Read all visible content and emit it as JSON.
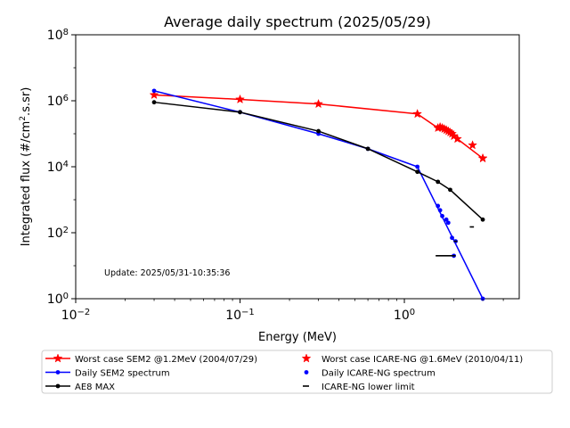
{
  "chart_data": {
    "type": "line",
    "title": "Average daily spectrum (2025/05/29)",
    "xlabel": "Energy (MeV)",
    "ylabel_main": "Integrated flux (#/cm",
    "ylabel_sup": "2",
    "ylabel_tail": ".s.sr)",
    "x_scale": "log",
    "y_scale": "log",
    "xlim": [
      0.01,
      5
    ],
    "ylim": [
      1,
      100000000
    ],
    "x_ticks": [
      {
        "value": 0.01,
        "base": "10",
        "exp": "−2"
      },
      {
        "value": 0.1,
        "base": "10",
        "exp": "−1"
      },
      {
        "value": 1,
        "base": "10",
        "exp": "0"
      }
    ],
    "y_ticks": [
      {
        "value": 1,
        "base": "10",
        "exp": "0"
      },
      {
        "value": 100,
        "base": "10",
        "exp": "2"
      },
      {
        "value": 10000,
        "base": "10",
        "exp": "4"
      },
      {
        "value": 1000000,
        "base": "10",
        "exp": "6"
      },
      {
        "value": 100000000,
        "base": "10",
        "exp": "8"
      }
    ],
    "annotation": "Update: 2025/05/31-10:35:36",
    "legend_position": "below plot",
    "series": [
      {
        "name": "Worst case SEM2 @1.2MeV (2004/07/29)",
        "color": "#ff0000",
        "style": "line-star",
        "x": [
          0.03,
          0.1,
          0.3,
          1.2,
          1.6,
          1.65,
          1.7,
          1.75,
          1.8,
          1.85,
          1.9,
          1.95,
          2.0,
          2.1,
          3.0
        ],
        "y": [
          1500000,
          1100000,
          800000,
          400000,
          150000,
          160000,
          150000,
          140000,
          130000,
          120000,
          110000,
          100000,
          85000,
          70000,
          18000
        ]
      },
      {
        "name": "Daily SEM2 spectrum",
        "color": "#0000ff",
        "style": "line-dot",
        "x": [
          0.03,
          0.1,
          0.3,
          0.6,
          1.2,
          3.0
        ],
        "y": [
          2000000,
          450000,
          100000,
          35000,
          10000,
          1
        ]
      },
      {
        "name": "AE8 MAX",
        "color": "#000000",
        "style": "line-dot",
        "x": [
          0.03,
          0.1,
          0.3,
          0.6,
          1.2,
          1.6,
          1.9,
          3.0
        ],
        "y": [
          900000,
          450000,
          120000,
          35000,
          7000,
          3500,
          2000,
          250
        ]
      },
      {
        "name": "Worst case ICARE-NG @1.6MeV (2010/04/11)",
        "color": "#ff0000",
        "style": "star",
        "x": [
          2.6,
          3.0
        ],
        "y": [
          45000,
          18000
        ]
      },
      {
        "name": "Daily ICARE-NG spectrum",
        "color": "#0000ff",
        "style": "dot",
        "x": [
          1.6,
          1.65,
          1.7,
          1.8,
          1.85,
          1.95,
          2.0,
          2.05
        ],
        "y": [
          650,
          480,
          320,
          250,
          200,
          70,
          20,
          55
        ]
      },
      {
        "name": "ICARE-NG lower limit",
        "color": "#000000",
        "style": "hline",
        "segments": [
          {
            "x0": 1.55,
            "x1": 2.05,
            "y": 20
          },
          {
            "x0": 2.0,
            "x1": 2.1,
            "y": 55
          },
          {
            "x0": 2.5,
            "x1": 2.65,
            "y": 150
          }
        ]
      }
    ]
  }
}
